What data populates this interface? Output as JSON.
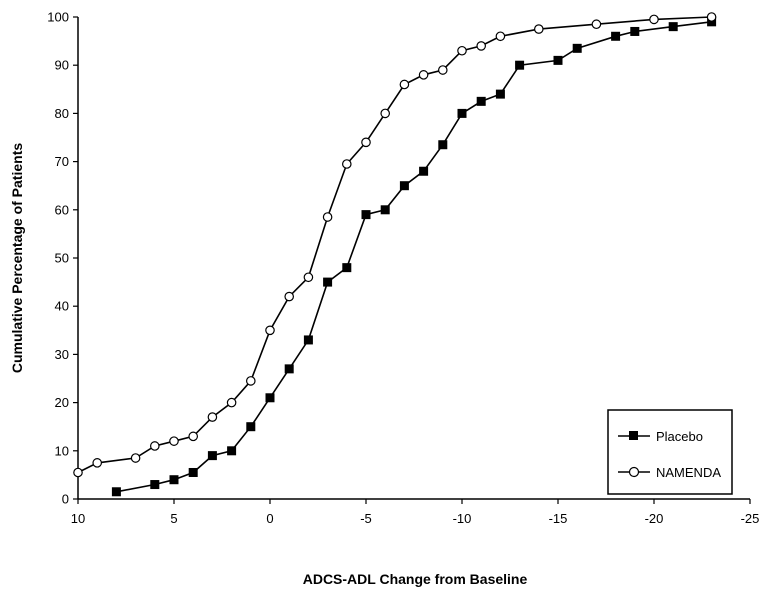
{
  "chart_data": {
    "type": "line",
    "xlabel": "ADCS-ADL Change from Baseline",
    "ylabel": "Cumulative Percentage of Patients",
    "xlim": [
      10,
      -25
    ],
    "ylim": [
      0,
      100
    ],
    "x_ticks": [
      10,
      5,
      0,
      -5,
      -10,
      -15,
      -20,
      -25
    ],
    "x_tick_labels": [
      "10",
      "5",
      "0",
      "-5",
      "-10",
      "-15",
      "-20",
      "-25"
    ],
    "y_ticks": [
      0,
      10,
      20,
      30,
      40,
      50,
      60,
      70,
      80,
      90,
      100
    ],
    "grid": false,
    "legend_position": "bottom-right",
    "series": [
      {
        "name": "Placebo",
        "marker": "filled-square",
        "color": "#000000",
        "points": [
          [
            8,
            1.5
          ],
          [
            6,
            3
          ],
          [
            5,
            4
          ],
          [
            4,
            5.5
          ],
          [
            3,
            9
          ],
          [
            2,
            10
          ],
          [
            1,
            15
          ],
          [
            0,
            21
          ],
          [
            -1,
            27
          ],
          [
            -2,
            33
          ],
          [
            -3,
            45
          ],
          [
            -4,
            48
          ],
          [
            -5,
            59
          ],
          [
            -6,
            60
          ],
          [
            -7,
            65
          ],
          [
            -8,
            68
          ],
          [
            -9,
            73.5
          ],
          [
            -10,
            80
          ],
          [
            -11,
            82.5
          ],
          [
            -12,
            84
          ],
          [
            -13,
            90
          ],
          [
            -15,
            91
          ],
          [
            -16,
            93.5
          ],
          [
            -18,
            96
          ],
          [
            -19,
            97
          ],
          [
            -21,
            98
          ],
          [
            -23,
            99
          ]
        ]
      },
      {
        "name": "NAMENDA",
        "marker": "open-circle",
        "color": "#000000",
        "points": [
          [
            10,
            5.5
          ],
          [
            9,
            7.5
          ],
          [
            7,
            8.5
          ],
          [
            6,
            11
          ],
          [
            5,
            12
          ],
          [
            4,
            13
          ],
          [
            3,
            17
          ],
          [
            2,
            20
          ],
          [
            1,
            24.5
          ],
          [
            0,
            35
          ],
          [
            -1,
            42
          ],
          [
            -2,
            46
          ],
          [
            -3,
            58.5
          ],
          [
            -4,
            69.5
          ],
          [
            -5,
            74
          ],
          [
            -6,
            80
          ],
          [
            -7,
            86
          ],
          [
            -8,
            88
          ],
          [
            -9,
            89
          ],
          [
            -10,
            93
          ],
          [
            -11,
            94
          ],
          [
            -12,
            96
          ],
          [
            -14,
            97.5
          ],
          [
            -17,
            98.5
          ],
          [
            -20,
            99.5
          ],
          [
            -23,
            100
          ]
        ]
      }
    ]
  }
}
